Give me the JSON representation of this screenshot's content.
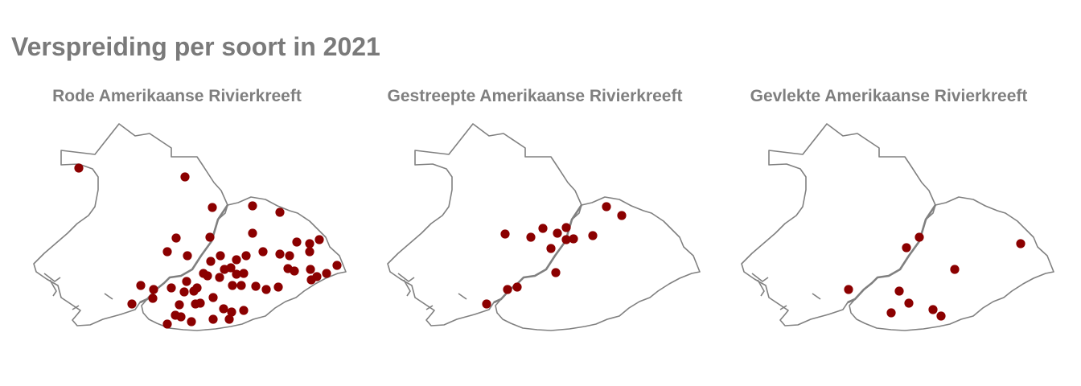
{
  "title": "Verspreiding per soort in 2021",
  "colors": {
    "point": "#8b0000",
    "outline": "#808080",
    "title": "#7a7a7a"
  },
  "panels": [
    {
      "name": "Rode Amerikaanse Rivierkreeft",
      "points": [
        [
          98,
          209
        ],
        [
          230,
          220
        ],
        [
          264,
          258
        ],
        [
          314,
          256
        ],
        [
          348,
          264
        ],
        [
          219,
          296
        ],
        [
          261,
          295
        ],
        [
          314,
          290
        ],
        [
          208,
          313
        ],
        [
          233,
          318
        ],
        [
          274,
          318
        ],
        [
          306,
          318
        ],
        [
          327,
          313
        ],
        [
          348,
          316
        ],
        [
          360,
          318
        ],
        [
          369,
          301
        ],
        [
          385,
          303
        ],
        [
          397,
          298
        ],
        [
          385,
          313
        ],
        [
          175,
          355
        ],
        [
          191,
          360
        ],
        [
          190,
          371
        ],
        [
          164,
          378
        ],
        [
          213,
          358
        ],
        [
          232,
          350
        ],
        [
          245,
          358
        ],
        [
          262,
          325
        ],
        [
          258,
          343
        ],
        [
          273,
          345
        ],
        [
          287,
          333
        ],
        [
          289,
          355
        ],
        [
          300,
          355
        ],
        [
          303,
          340
        ],
        [
          318,
          356
        ],
        [
          331,
          360
        ],
        [
          346,
          357
        ],
        [
          358,
          334
        ],
        [
          366,
          337
        ],
        [
          386,
          335
        ],
        [
          387,
          348
        ],
        [
          394,
          344
        ],
        [
          406,
          340
        ],
        [
          419,
          330
        ],
        [
          223,
          379
        ],
        [
          243,
          378
        ],
        [
          249,
          377
        ],
        [
          265,
          370
        ],
        [
          278,
          384
        ],
        [
          288,
          388
        ],
        [
          303,
          386
        ],
        [
          285,
          397
        ],
        [
          238,
          400
        ],
        [
          265,
          397
        ],
        [
          208,
          403
        ],
        [
          225,
          394
        ],
        [
          218,
          392
        ],
        [
          229,
          363
        ],
        [
          241,
          362
        ],
        [
          253,
          340
        ],
        [
          279,
          335
        ],
        [
          294,
          323
        ],
        [
          294,
          341
        ]
      ]
    },
    {
      "name": "Gestreepte Amerikaanse Rivierkreeft",
      "points": [
        [
          628,
          291
        ],
        [
          660,
          295
        ],
        [
          675,
          284
        ],
        [
          693,
          290
        ],
        [
          704,
          283
        ],
        [
          713,
          297
        ],
        [
          704,
          298
        ],
        [
          737,
          293
        ],
        [
          754,
          257
        ],
        [
          773,
          268
        ],
        [
          685,
          309
        ],
        [
          691,
          339
        ],
        [
          643,
          357
        ],
        [
          631,
          360
        ],
        [
          605,
          378
        ]
      ]
    },
    {
      "name": "Gevlekte Amerikaanse Rivierkreeft",
      "points": [
        [
          1143,
          295
        ],
        [
          1127,
          308
        ],
        [
          1269,
          303
        ],
        [
          1187,
          335
        ],
        [
          1055,
          360
        ],
        [
          1118,
          362
        ],
        [
          1130,
          377
        ],
        [
          1108,
          389
        ],
        [
          1160,
          385
        ],
        [
          1170,
          393
        ]
      ]
    }
  ]
}
